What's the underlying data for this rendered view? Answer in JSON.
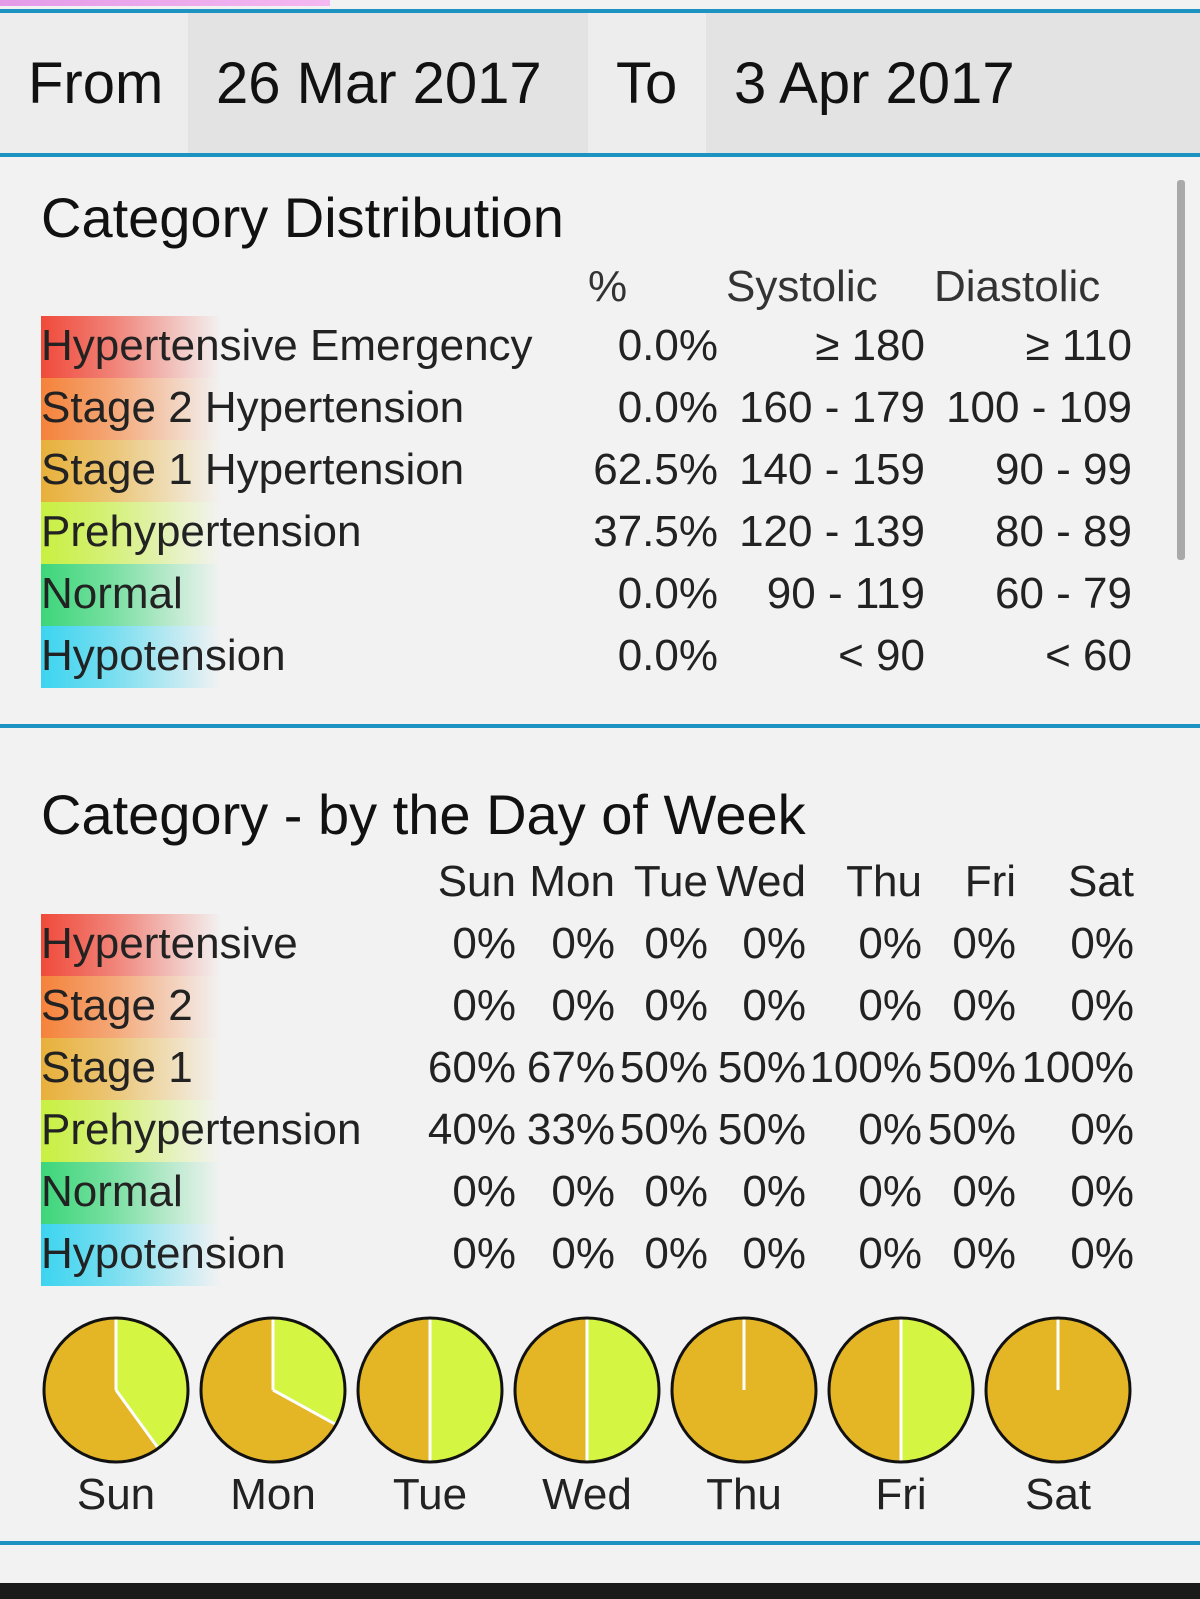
{
  "date_range": {
    "from_label": "From",
    "from_value": "26 Mar 2017",
    "to_label": "To",
    "to_value": "3 Apr 2017"
  },
  "colors": {
    "accent": "#1d93c4",
    "stage1": "#e4b626",
    "prehypertension": "#d4f542"
  },
  "distribution": {
    "title": "Category Distribution",
    "headers": {
      "percent": "%",
      "systolic": "Systolic",
      "diastolic": "Diastolic"
    },
    "rows": [
      {
        "label": "Hypertensive Emergency",
        "percent": "0.0%",
        "systolic": "≥ 180",
        "diastolic": "≥ 110",
        "color": "#f04a3a"
      },
      {
        "label": "Stage 2 Hypertension",
        "percent": "0.0%",
        "systolic": "160 - 179",
        "diastolic": "100 - 109",
        "color": "#f5823a"
      },
      {
        "label": "Stage 1 Hypertension",
        "percent": "62.5%",
        "systolic": "140 - 159",
        "diastolic": "90 - 99",
        "color": "#e8b03a"
      },
      {
        "label": "Prehypertension",
        "percent": "37.5%",
        "systolic": "120 - 139",
        "diastolic": "80 - 89",
        "color": "#c8f040"
      },
      {
        "label": "Normal",
        "percent": "0.0%",
        "systolic": "90 - 119",
        "diastolic": "60 - 79",
        "color": "#3cd67a"
      },
      {
        "label": "Hypotension",
        "percent": "0.0%",
        "systolic": "< 90",
        "diastolic": "< 60",
        "color": "#3cd4f0"
      }
    ]
  },
  "weekly": {
    "title": "Category - by the Day of Week",
    "days": [
      "Sun",
      "Mon",
      "Tue",
      "Wed",
      "Thu",
      "Fri",
      "Sat"
    ],
    "rows": [
      {
        "label": "Hypertensive",
        "values": [
          "0%",
          "0%",
          "0%",
          "0%",
          "0%",
          "0%",
          "0%"
        ],
        "color": "#f04a3a"
      },
      {
        "label": "Stage 2",
        "values": [
          "0%",
          "0%",
          "0%",
          "0%",
          "0%",
          "0%",
          "0%"
        ],
        "color": "#f5823a"
      },
      {
        "label": "Stage 1",
        "values": [
          "60%",
          "67%",
          "50%",
          "50%",
          "100%",
          "50%",
          "100%"
        ],
        "color": "#e8b03a"
      },
      {
        "label": "Prehypertension",
        "values": [
          "40%",
          "33%",
          "50%",
          "50%",
          "0%",
          "50%",
          "0%"
        ],
        "color": "#c8f040"
      },
      {
        "label": "Normal",
        "values": [
          "0%",
          "0%",
          "0%",
          "0%",
          "0%",
          "0%",
          "0%"
        ],
        "color": "#3cd67a"
      },
      {
        "label": "Hypotension",
        "values": [
          "0%",
          "0%",
          "0%",
          "0%",
          "0%",
          "0%",
          "0%"
        ],
        "color": "#3cd4f0"
      }
    ],
    "pie_shares": [
      {
        "day": "Sun",
        "stage1": 0.6,
        "prehypertension": 0.4
      },
      {
        "day": "Mon",
        "stage1": 0.67,
        "prehypertension": 0.33
      },
      {
        "day": "Tue",
        "stage1": 0.5,
        "prehypertension": 0.5
      },
      {
        "day": "Wed",
        "stage1": 0.5,
        "prehypertension": 0.5
      },
      {
        "day": "Thu",
        "stage1": 1.0,
        "prehypertension": 0.0
      },
      {
        "day": "Fri",
        "stage1": 0.5,
        "prehypertension": 0.5
      },
      {
        "day": "Sat",
        "stage1": 1.0,
        "prehypertension": 0.0
      }
    ]
  }
}
